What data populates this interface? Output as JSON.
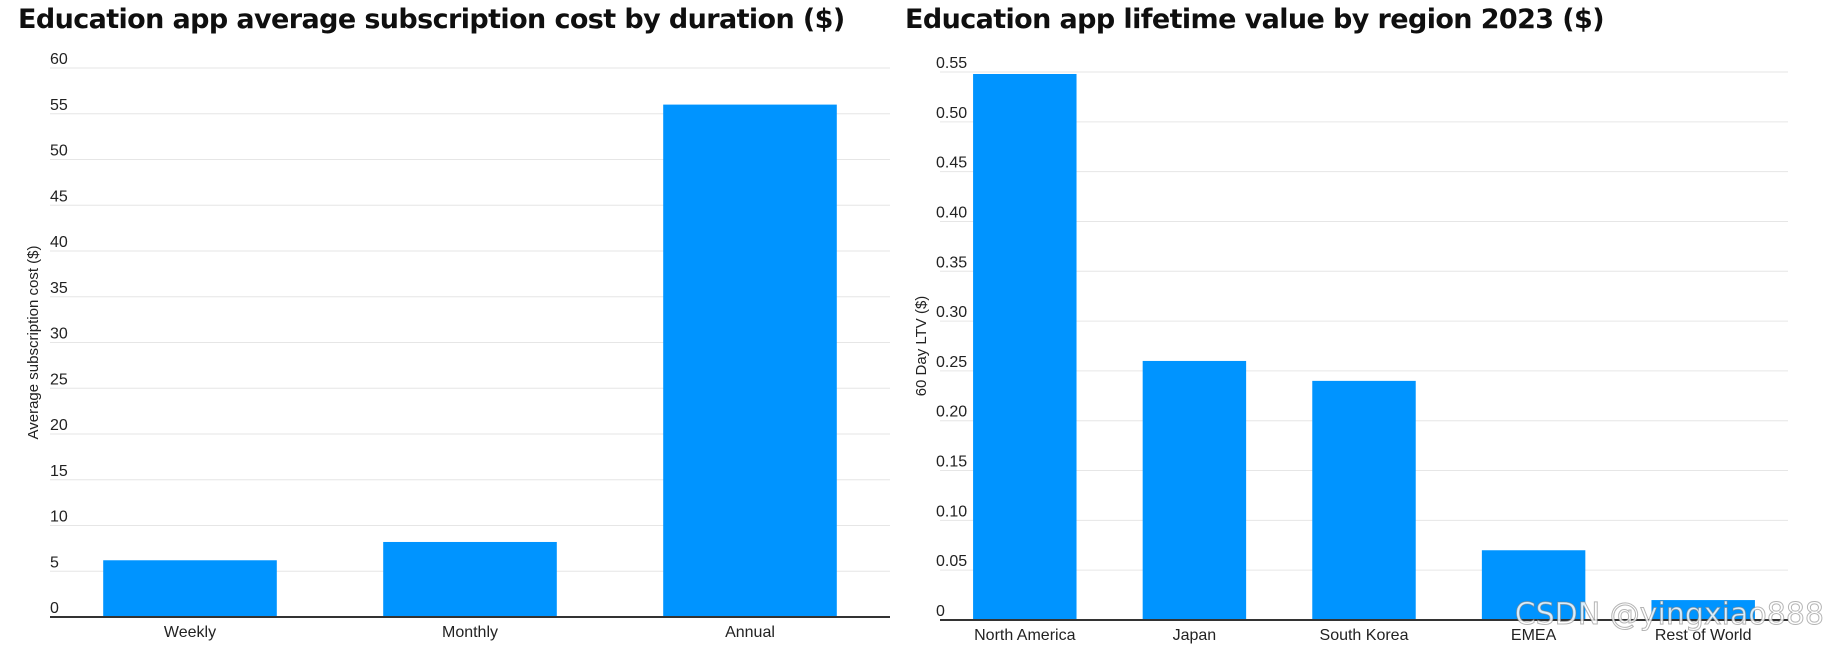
{
  "chart_data": [
    {
      "type": "bar",
      "title": "Education app average subscription cost by duration ($)",
      "xlabel": "",
      "ylabel": "Average subscription cost ($)",
      "categories": [
        "Weekly",
        "Monthly",
        "Annual"
      ],
      "values": [
        6.2,
        8.2,
        56
      ],
      "ylim": [
        0,
        60
      ],
      "yticks": [
        "0",
        "5",
        "10",
        "15",
        "20",
        "25",
        "30",
        "35",
        "40",
        "45",
        "50",
        "55",
        "60"
      ],
      "grid": true,
      "color": "#0094ff"
    },
    {
      "type": "bar",
      "title": "Education app lifetime value by region 2023 ($)",
      "xlabel": "",
      "ylabel": "60 Day LTV ($)",
      "categories": [
        "North America",
        "Japan",
        "South Korea",
        "EMEA",
        "Rest of World"
      ],
      "values": [
        0.548,
        0.26,
        0.24,
        0.07,
        0.02
      ],
      "ylim": [
        0,
        0.55
      ],
      "yticks": [
        "0",
        "0.05",
        "0.10",
        "0.15",
        "0.20",
        "0.25",
        "0.30",
        "0.35",
        "0.40",
        "0.45",
        "0.50",
        "0.55"
      ],
      "grid": true,
      "color": "#0094ff"
    }
  ],
  "watermark": "CSDN @yingxiao888"
}
